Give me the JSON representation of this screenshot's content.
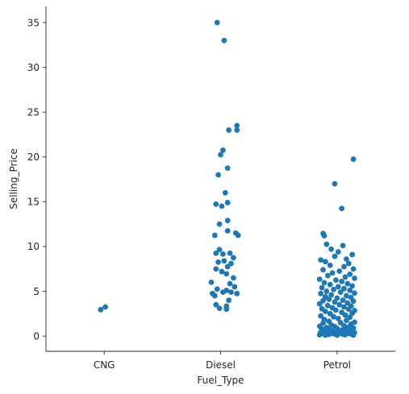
{
  "chart_data": {
    "type": "scatter",
    "subtype": "strip",
    "title": "",
    "xlabel": "Fuel_Type",
    "ylabel": "Selling_Price",
    "categories": [
      "CNG",
      "Diesel",
      "Petrol"
    ],
    "ylim": [
      -1.7,
      36.8
    ],
    "yticks": [
      0,
      5,
      10,
      15,
      20,
      25,
      30,
      35
    ],
    "grid": false,
    "legend": "none",
    "color": "#1f77b4",
    "points": [
      {
        "category": "CNG",
        "jitter": -0.03,
        "value": 2.95
      },
      {
        "category": "CNG",
        "jitter": 0.01,
        "value": 3.25
      },
      {
        "category": "Diesel",
        "jitter": -0.03,
        "value": 35.0
      },
      {
        "category": "Diesel",
        "jitter": 0.03,
        "value": 33.0
      },
      {
        "category": "Diesel",
        "jitter": 0.14,
        "value": 23.5
      },
      {
        "category": "Diesel",
        "jitter": 0.14,
        "value": 23.0
      },
      {
        "category": "Diesel",
        "jitter": 0.07,
        "value": 23.0
      },
      {
        "category": "Diesel",
        "jitter": 0.02,
        "value": 20.75
      },
      {
        "category": "Diesel",
        "jitter": 0.0,
        "value": 20.25
      },
      {
        "category": "Diesel",
        "jitter": 0.06,
        "value": 18.75
      },
      {
        "category": "Diesel",
        "jitter": -0.02,
        "value": 18.0
      },
      {
        "category": "Diesel",
        "jitter": 0.04,
        "value": 16.0
      },
      {
        "category": "Diesel",
        "jitter": -0.04,
        "value": 14.73
      },
      {
        "category": "Diesel",
        "jitter": 0.06,
        "value": 14.9
      },
      {
        "category": "Diesel",
        "jitter": 0.01,
        "value": 14.5
      },
      {
        "category": "Diesel",
        "jitter": -0.01,
        "value": 12.5
      },
      {
        "category": "Diesel",
        "jitter": 0.06,
        "value": 12.9
      },
      {
        "category": "Diesel",
        "jitter": 0.06,
        "value": 11.75
      },
      {
        "category": "Diesel",
        "jitter": 0.13,
        "value": 11.5
      },
      {
        "category": "Diesel",
        "jitter": 0.15,
        "value": 11.25
      },
      {
        "category": "Diesel",
        "jitter": -0.05,
        "value": 11.25
      },
      {
        "category": "Diesel",
        "jitter": -0.04,
        "value": 9.25
      },
      {
        "category": "Diesel",
        "jitter": -0.01,
        "value": 9.65
      },
      {
        "category": "Diesel",
        "jitter": 0.02,
        "value": 9.15
      },
      {
        "category": "Diesel",
        "jitter": 0.08,
        "value": 9.25
      },
      {
        "category": "Diesel",
        "jitter": 0.11,
        "value": 8.75
      },
      {
        "category": "Diesel",
        "jitter": -0.02,
        "value": 8.25
      },
      {
        "category": "Diesel",
        "jitter": 0.03,
        "value": 8.4
      },
      {
        "category": "Diesel",
        "jitter": 0.09,
        "value": 8.1
      },
      {
        "category": "Diesel",
        "jitter": 0.06,
        "value": 7.75
      },
      {
        "category": "Diesel",
        "jitter": -0.04,
        "value": 7.5
      },
      {
        "category": "Diesel",
        "jitter": 0.01,
        "value": 7.2
      },
      {
        "category": "Diesel",
        "jitter": 0.05,
        "value": 6.95
      },
      {
        "category": "Diesel",
        "jitter": 0.11,
        "value": 6.5
      },
      {
        "category": "Diesel",
        "jitter": -0.08,
        "value": 6.0
      },
      {
        "category": "Diesel",
        "jitter": 0.08,
        "value": 5.85
      },
      {
        "category": "Diesel",
        "jitter": 0.12,
        "value": 5.5
      },
      {
        "category": "Diesel",
        "jitter": -0.03,
        "value": 5.25
      },
      {
        "category": "Diesel",
        "jitter": 0.05,
        "value": 5.1
      },
      {
        "category": "Diesel",
        "jitter": 0.02,
        "value": 4.9
      },
      {
        "category": "Diesel",
        "jitter": -0.07,
        "value": 4.75
      },
      {
        "category": "Diesel",
        "jitter": 0.14,
        "value": 4.75
      },
      {
        "category": "Diesel",
        "jitter": -0.05,
        "value": 4.5
      },
      {
        "category": "Diesel",
        "jitter": 0.09,
        "value": 4.9
      },
      {
        "category": "Diesel",
        "jitter": 0.07,
        "value": 4.0
      },
      {
        "category": "Diesel",
        "jitter": -0.04,
        "value": 3.5
      },
      {
        "category": "Diesel",
        "jitter": 0.05,
        "value": 3.35
      },
      {
        "category": "Diesel",
        "jitter": -0.01,
        "value": 3.1
      },
      {
        "category": "Diesel",
        "jitter": 0.05,
        "value": 3.0
      },
      {
        "category": "Petrol",
        "jitter": 0.14,
        "value": 19.75
      },
      {
        "category": "Petrol",
        "jitter": -0.02,
        "value": 17.0
      },
      {
        "category": "Petrol",
        "jitter": 0.04,
        "value": 14.25
      },
      {
        "category": "Petrol",
        "jitter": -0.12,
        "value": 11.45
      },
      {
        "category": "Petrol",
        "jitter": -0.11,
        "value": 11.2
      },
      {
        "category": "Petrol",
        "jitter": -0.09,
        "value": 10.25
      },
      {
        "category": "Petrol",
        "jitter": 0.05,
        "value": 10.1
      },
      {
        "category": "Petrol",
        "jitter": -0.05,
        "value": 9.7
      },
      {
        "category": "Petrol",
        "jitter": 0.01,
        "value": 9.4
      },
      {
        "category": "Petrol",
        "jitter": 0.13,
        "value": 9.1
      },
      {
        "category": "Petrol",
        "jitter": -0.02,
        "value": 8.9
      },
      {
        "category": "Petrol",
        "jitter": 0.08,
        "value": 8.6
      },
      {
        "category": "Petrol",
        "jitter": -0.14,
        "value": 8.5
      },
      {
        "category": "Petrol",
        "jitter": -0.1,
        "value": 8.3
      },
      {
        "category": "Petrol",
        "jitter": 0.1,
        "value": 8.1
      },
      {
        "category": "Petrol",
        "jitter": -0.06,
        "value": 7.9
      },
      {
        "category": "Petrol",
        "jitter": 0.06,
        "value": 7.75
      },
      {
        "category": "Petrol",
        "jitter": 0.14,
        "value": 7.5
      },
      {
        "category": "Petrol",
        "jitter": -0.12,
        "value": 7.4
      },
      {
        "category": "Petrol",
        "jitter": 0.02,
        "value": 7.25
      },
      {
        "category": "Petrol",
        "jitter": -0.04,
        "value": 7.05
      },
      {
        "category": "Petrol",
        "jitter": 0.11,
        "value": 6.9
      },
      {
        "category": "Petrol",
        "jitter": -0.08,
        "value": 6.75
      },
      {
        "category": "Petrol",
        "jitter": 0.07,
        "value": 6.6
      },
      {
        "category": "Petrol",
        "jitter": 0.15,
        "value": 6.45
      },
      {
        "category": "Petrol",
        "jitter": -0.15,
        "value": 6.35
      },
      {
        "category": "Petrol",
        "jitter": -0.01,
        "value": 6.25
      },
      {
        "category": "Petrol",
        "jitter": 0.04,
        "value": 6.1
      },
      {
        "category": "Petrol",
        "jitter": -0.11,
        "value": 5.95
      },
      {
        "category": "Petrol",
        "jitter": 0.09,
        "value": 5.85
      },
      {
        "category": "Petrol",
        "jitter": -0.06,
        "value": 5.75
      },
      {
        "category": "Petrol",
        "jitter": 0.13,
        "value": 5.6
      },
      {
        "category": "Petrol",
        "jitter": 0.01,
        "value": 5.5
      },
      {
        "category": "Petrol",
        "jitter": -0.13,
        "value": 5.4
      },
      {
        "category": "Petrol",
        "jitter": 0.06,
        "value": 5.3
      },
      {
        "category": "Petrol",
        "jitter": -0.03,
        "value": 5.2
      },
      {
        "category": "Petrol",
        "jitter": 0.11,
        "value": 5.1
      },
      {
        "category": "Petrol",
        "jitter": -0.09,
        "value": 5.0
      },
      {
        "category": "Petrol",
        "jitter": 0.03,
        "value": 4.9
      },
      {
        "category": "Petrol",
        "jitter": 0.15,
        "value": 4.8
      },
      {
        "category": "Petrol",
        "jitter": -0.14,
        "value": 4.75
      },
      {
        "category": "Petrol",
        "jitter": -0.05,
        "value": 4.6
      },
      {
        "category": "Petrol",
        "jitter": 0.08,
        "value": 4.5
      },
      {
        "category": "Petrol",
        "jitter": -0.1,
        "value": 4.4
      },
      {
        "category": "Petrol",
        "jitter": 0.12,
        "value": 4.3
      },
      {
        "category": "Petrol",
        "jitter": 0.0,
        "value": 4.25
      },
      {
        "category": "Petrol",
        "jitter": -0.07,
        "value": 4.1
      },
      {
        "category": "Petrol",
        "jitter": 0.05,
        "value": 4.0
      },
      {
        "category": "Petrol",
        "jitter": -0.12,
        "value": 3.95
      },
      {
        "category": "Petrol",
        "jitter": 0.14,
        "value": 3.9
      },
      {
        "category": "Petrol",
        "jitter": -0.02,
        "value": 3.8
      },
      {
        "category": "Petrol",
        "jitter": 0.09,
        "value": 3.7
      },
      {
        "category": "Petrol",
        "jitter": -0.15,
        "value": 3.6
      },
      {
        "category": "Petrol",
        "jitter": 0.02,
        "value": 3.5
      },
      {
        "category": "Petrol",
        "jitter": -0.08,
        "value": 3.4
      },
      {
        "category": "Petrol",
        "jitter": 0.12,
        "value": 3.35
      },
      {
        "category": "Petrol",
        "jitter": 0.06,
        "value": 3.25
      },
      {
        "category": "Petrol",
        "jitter": -0.04,
        "value": 3.15
      },
      {
        "category": "Petrol",
        "jitter": -0.13,
        "value": 3.05
      },
      {
        "category": "Petrol",
        "jitter": 0.1,
        "value": 3.0
      },
      {
        "category": "Petrol",
        "jitter": -0.01,
        "value": 2.9
      },
      {
        "category": "Petrol",
        "jitter": 0.15,
        "value": 2.85
      },
      {
        "category": "Petrol",
        "jitter": -0.1,
        "value": 2.75
      },
      {
        "category": "Petrol",
        "jitter": 0.04,
        "value": 2.65
      },
      {
        "category": "Petrol",
        "jitter": 0.13,
        "value": 2.55
      },
      {
        "category": "Petrol",
        "jitter": -0.06,
        "value": 2.5
      },
      {
        "category": "Petrol",
        "jitter": 0.07,
        "value": 2.35
      },
      {
        "category": "Petrol",
        "jitter": -0.14,
        "value": 2.25
      },
      {
        "category": "Petrol",
        "jitter": -0.03,
        "value": 2.15
      },
      {
        "category": "Petrol",
        "jitter": 0.11,
        "value": 2.1
      },
      {
        "category": "Petrol",
        "jitter": 0.01,
        "value": 1.95
      },
      {
        "category": "Petrol",
        "jitter": -0.11,
        "value": 1.85
      },
      {
        "category": "Petrol",
        "jitter": 0.08,
        "value": 1.75
      },
      {
        "category": "Petrol",
        "jitter": -0.07,
        "value": 1.65
      },
      {
        "category": "Petrol",
        "jitter": 0.15,
        "value": 1.55
      },
      {
        "category": "Petrol",
        "jitter": 0.03,
        "value": 1.5
      },
      {
        "category": "Petrol",
        "jitter": -0.12,
        "value": 1.45
      },
      {
        "category": "Petrol",
        "jitter": 0.12,
        "value": 1.35
      },
      {
        "category": "Petrol",
        "jitter": -0.05,
        "value": 1.25
      },
      {
        "category": "Petrol",
        "jitter": 0.06,
        "value": 1.15
      },
      {
        "category": "Petrol",
        "jitter": -0.15,
        "value": 1.1
      },
      {
        "category": "Petrol",
        "jitter": -0.02,
        "value": 1.05
      },
      {
        "category": "Petrol",
        "jitter": 0.1,
        "value": 1.0
      },
      {
        "category": "Petrol",
        "jitter": -0.09,
        "value": 0.95
      },
      {
        "category": "Petrol",
        "jitter": 0.14,
        "value": 0.9
      },
      {
        "category": "Petrol",
        "jitter": 0.0,
        "value": 0.85
      },
      {
        "category": "Petrol",
        "jitter": -0.13,
        "value": 0.8
      },
      {
        "category": "Petrol",
        "jitter": 0.08,
        "value": 0.75
      },
      {
        "category": "Petrol",
        "jitter": -0.06,
        "value": 0.7
      },
      {
        "category": "Petrol",
        "jitter": 0.04,
        "value": 0.65
      },
      {
        "category": "Petrol",
        "jitter": 0.13,
        "value": 0.6
      },
      {
        "category": "Petrol",
        "jitter": -0.1,
        "value": 0.55
      },
      {
        "category": "Petrol",
        "jitter": -0.01,
        "value": 0.5
      },
      {
        "category": "Petrol",
        "jitter": 0.11,
        "value": 0.48
      },
      {
        "category": "Petrol",
        "jitter": -0.14,
        "value": 0.45
      },
      {
        "category": "Petrol",
        "jitter": 0.06,
        "value": 0.42
      },
      {
        "category": "Petrol",
        "jitter": -0.04,
        "value": 0.4
      },
      {
        "category": "Petrol",
        "jitter": 0.15,
        "value": 0.38
      },
      {
        "category": "Petrol",
        "jitter": -0.08,
        "value": 0.35
      },
      {
        "category": "Petrol",
        "jitter": 0.02,
        "value": 0.32
      },
      {
        "category": "Petrol",
        "jitter": 0.09,
        "value": 0.3
      },
      {
        "category": "Petrol",
        "jitter": -0.12,
        "value": 0.28
      },
      {
        "category": "Petrol",
        "jitter": -0.03,
        "value": 0.25
      },
      {
        "category": "Petrol",
        "jitter": 0.12,
        "value": 0.22
      },
      {
        "category": "Petrol",
        "jitter": 0.05,
        "value": 0.2
      },
      {
        "category": "Petrol",
        "jitter": -0.07,
        "value": 0.18
      },
      {
        "category": "Petrol",
        "jitter": -0.15,
        "value": 0.15
      },
      {
        "category": "Petrol",
        "jitter": 0.14,
        "value": 0.12
      },
      {
        "category": "Petrol",
        "jitter": 0.0,
        "value": 0.1
      },
      {
        "category": "Petrol",
        "jitter": -0.1,
        "value": 0.1
      },
      {
        "category": "Petrol",
        "jitter": 0.07,
        "value": 0.15
      },
      {
        "category": "Petrol",
        "jitter": 0.1,
        "value": 0.45
      },
      {
        "category": "Petrol",
        "jitter": -0.05,
        "value": 0.6
      }
    ]
  }
}
